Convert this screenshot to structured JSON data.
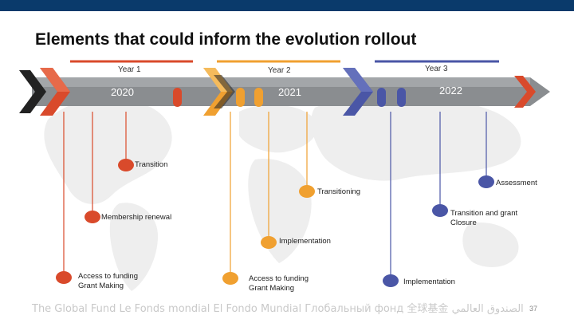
{
  "title": "Elements that could inform the evolution rollout",
  "years": [
    {
      "label": "Year 1",
      "year": "2020",
      "color": "#d94a2b"
    },
    {
      "label": "Year 2",
      "year": "2021",
      "color": "#f0a030"
    },
    {
      "label": "Year 3",
      "year": "2022",
      "color": "#4a56a6"
    }
  ],
  "milestones": {
    "transition": "Transition",
    "transitioning": "Transitioning",
    "membership_renewal": "Membership renewal",
    "implementation_mid": "Implementation",
    "access_funding_1": "Access to funding\nGrant Making",
    "access_funding_2": "Access to funding\nGrant Making",
    "assessment": "Assessment",
    "transition_grant_closure": "Transition and grant\nClosure",
    "implementation_right": "Implementation"
  },
  "footer": "The Global Fund  Le Fonds mondial  El Fondo Mundial  Глобальный фонд  全球基金  الصندوق العالمي",
  "page_number": "37",
  "colors": {
    "header_bar": "#0a3a6b",
    "red": "#d94a2b",
    "orange": "#f0a030",
    "blue": "#4a56a6",
    "arrow_band": "#8a8d90"
  }
}
